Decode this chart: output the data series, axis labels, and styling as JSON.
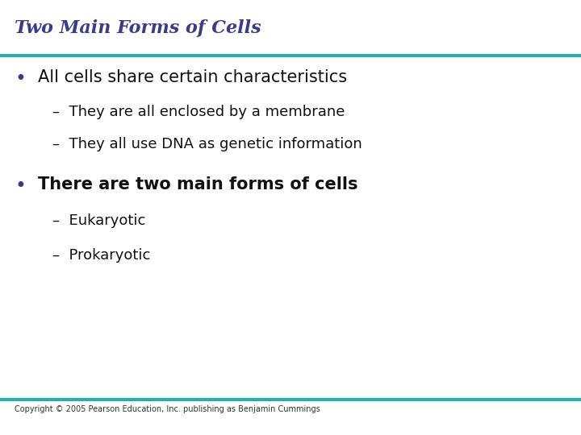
{
  "title": "Two Main Forms of Cells",
  "title_color": "#3B3B8C",
  "title_fontsize": 16,
  "title_style": "italic",
  "title_weight": "bold",
  "separator_color": "#2AACAA",
  "separator_linewidth": 3,
  "background_color": "#FFFFFF",
  "bullet_color": "#3B3B8C",
  "bullet1_text": "All cells share certain characteristics",
  "bullet1_fontsize": 15,
  "bullet1_weight": "normal",
  "sub1a_text": "–  They are all enclosed by a membrane",
  "sub1b_text": "–  They all use DNA as genetic information",
  "sub_fontsize": 13,
  "bullet2_text": "There are two main forms of cells",
  "bullet2_fontsize": 15,
  "bullet2_weight": "bold",
  "sub2a_text": "–  Eukaryotic",
  "sub2b_text": "–  Prokaryotic",
  "sub2_fontsize": 13,
  "footer_text": "Copyright © 2005 Pearson Education, Inc. publishing as Benjamin Cummings",
  "footer_fontsize": 7,
  "footer_color": "#333333",
  "text_color": "#111111",
  "sub_text_color": "#111111"
}
